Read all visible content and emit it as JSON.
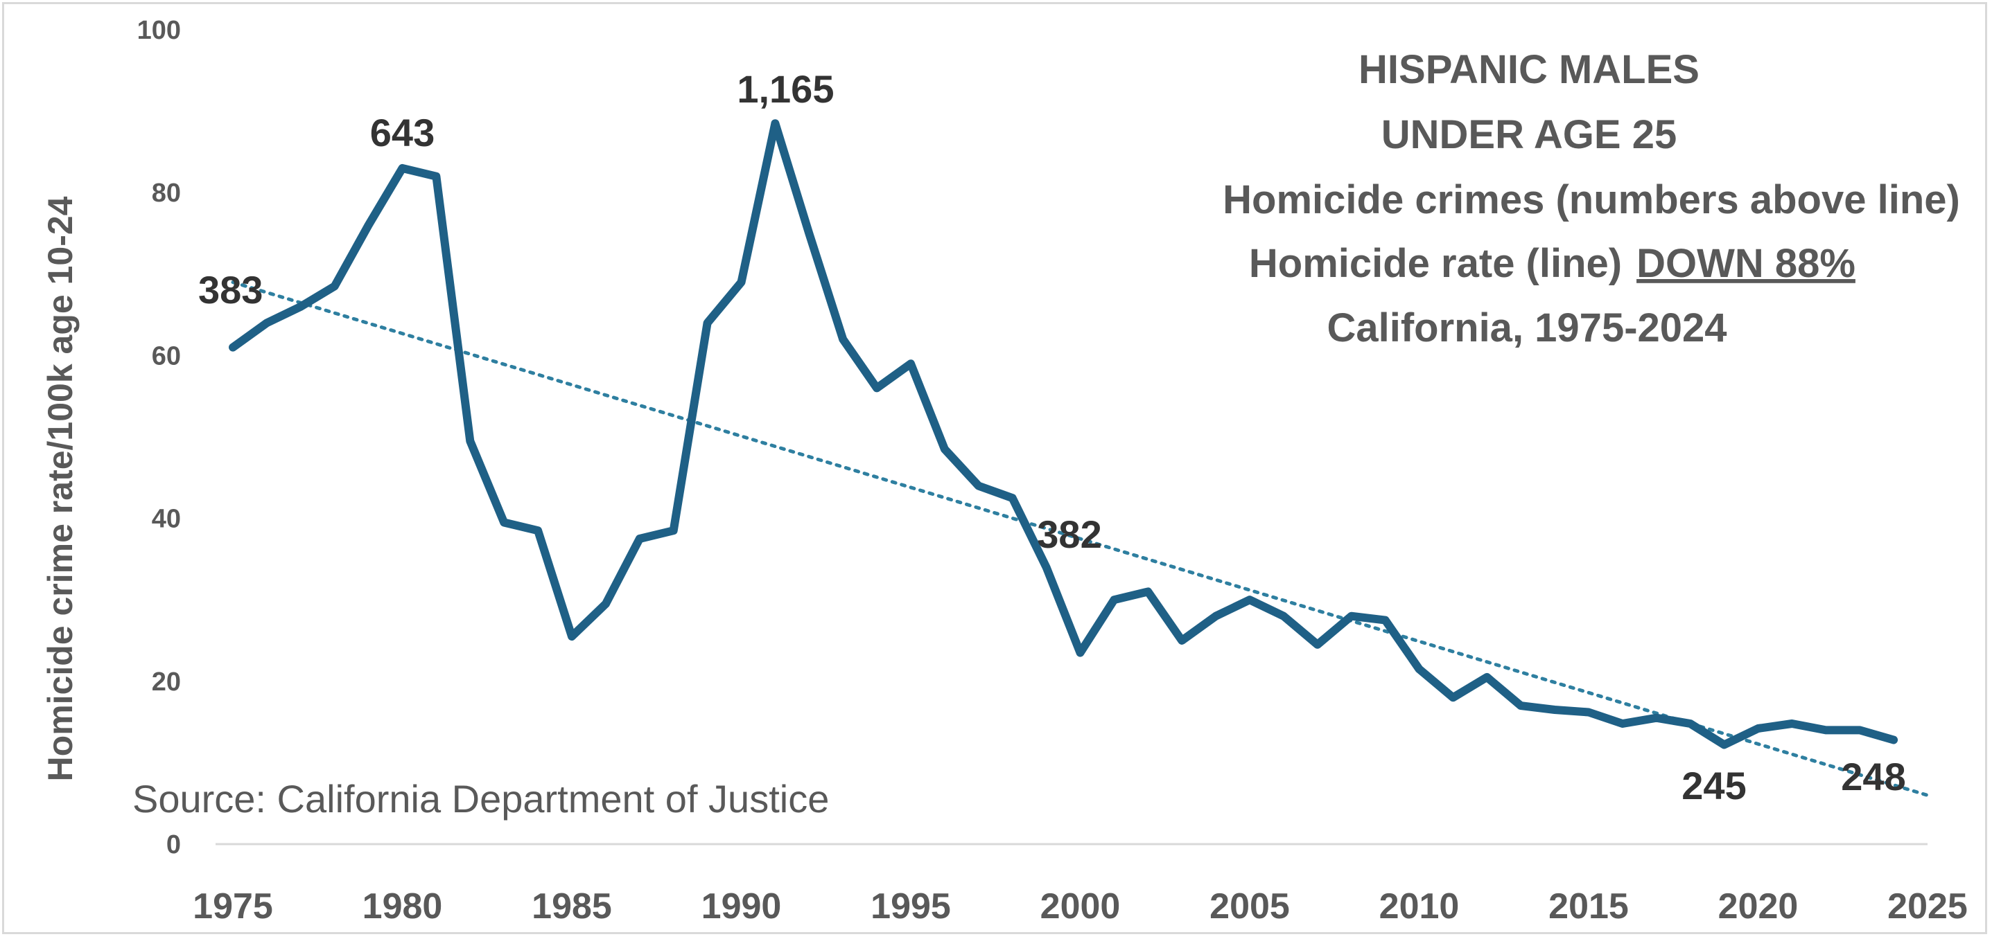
{
  "chart_data": {
    "type": "line",
    "title_lines": [
      "HISPANIC MALES",
      "UNDER AGE 25",
      "Homicide crimes (numbers above line)",
      "Homicide rate (line)",
      "California, 1975-2024"
    ],
    "title_emphasis": "DOWN 88%",
    "ylabel": "Homicide crime rate/100k age 10-24",
    "xlabel": "",
    "source": "Source: California Department of Justice",
    "xlim": [
      1975,
      2025
    ],
    "ylim": [
      0,
      100
    ],
    "x_ticks": [
      "1975",
      "1980",
      "1985",
      "1990",
      "1995",
      "2000",
      "2005",
      "2010",
      "2015",
      "2020",
      "2025"
    ],
    "y_ticks": [
      "0",
      "20",
      "40",
      "60",
      "80",
      "100"
    ],
    "grid": false,
    "legend": "none",
    "color": "#1f6086",
    "trend_color": "#2e7fa0",
    "x": [
      1975,
      1976,
      1977,
      1978,
      1979,
      1980,
      1981,
      1982,
      1983,
      1984,
      1985,
      1986,
      1987,
      1988,
      1989,
      1990,
      1991,
      1992,
      1993,
      1994,
      1995,
      1996,
      1997,
      1998,
      1999,
      2000,
      2001,
      2002,
      2003,
      2004,
      2005,
      2006,
      2007,
      2008,
      2009,
      2010,
      2011,
      2012,
      2013,
      2014,
      2015,
      2016,
      2017,
      2018,
      2019,
      2020,
      2021,
      2022,
      2023,
      2024
    ],
    "values": [
      61,
      64,
      66,
      68.5,
      76,
      83,
      82,
      49.5,
      39.5,
      38.5,
      25.5,
      29.5,
      37.5,
      38.5,
      64,
      69,
      88.5,
      75,
      62,
      56,
      59,
      48.5,
      44,
      42.5,
      34,
      23.5,
      30,
      31,
      25,
      28,
      30,
      28,
      24.5,
      28,
      27.5,
      21.5,
      18,
      20.5,
      17,
      16.5,
      16.2,
      14.8,
      15.5,
      14.8,
      12.2,
      14.2,
      14.8,
      14,
      14,
      12.8
    ],
    "trendline": {
      "x": [
        1975,
        2025
      ],
      "y": [
        69,
        6
      ]
    },
    "point_labels": [
      {
        "x": 1975,
        "text": "383"
      },
      {
        "x": 1980,
        "text": "643"
      },
      {
        "x": 1991,
        "text": "1,165"
      },
      {
        "x": 2000,
        "text": "382"
      },
      {
        "x": 2019,
        "text": "245"
      },
      {
        "x": 2024,
        "text": "248"
      }
    ]
  }
}
